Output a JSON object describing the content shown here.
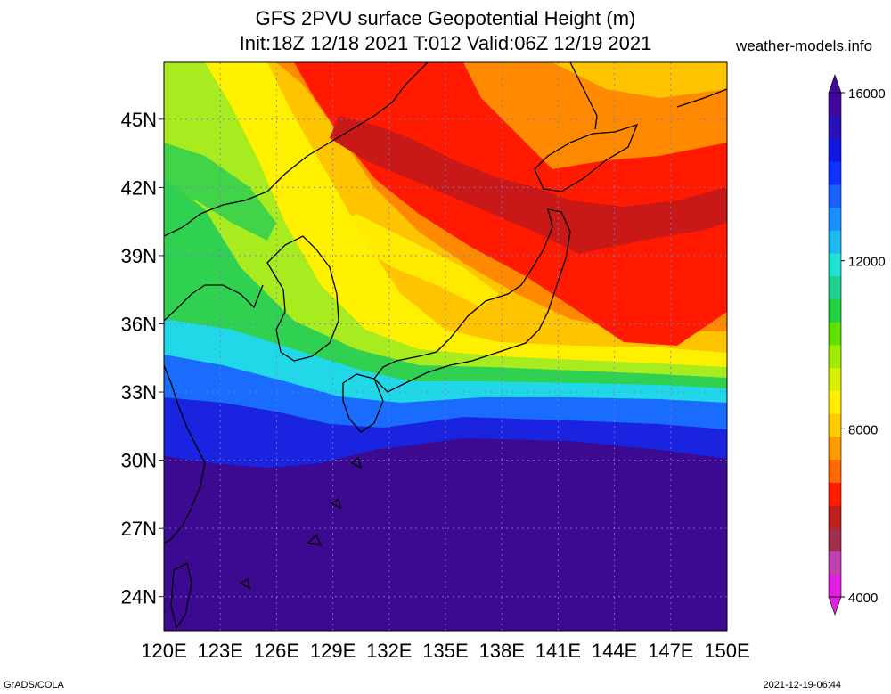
{
  "title_line1": "GFS 2PVU surface Geopotential Height (m)",
  "title_line2": "Init:18Z 12/18 2021 T:012 Valid:06Z 12/19 2021",
  "site": "weather-models.info",
  "footer_left": "GrADS/COLA",
  "footer_right": "2021-12-19-06:44",
  "map": {
    "lon_ticks": [
      "120E",
      "123E",
      "126E",
      "129E",
      "132E",
      "135E",
      "138E",
      "141E",
      "144E",
      "147E",
      "150E"
    ],
    "lat_ticks": [
      "45N",
      "42N",
      "39N",
      "36N",
      "33N",
      "30N",
      "27N",
      "24N"
    ],
    "lon_range": [
      120,
      150
    ],
    "lat_range": [
      22.5,
      47.5
    ]
  },
  "colorbar": {
    "labels": [
      "16000",
      "12000",
      "8000",
      "4000"
    ],
    "colors": [
      "#e020e0",
      "#c040b0",
      "#a03050",
      "#c02020",
      "#ff1e00",
      "#ff6a00",
      "#ff9a00",
      "#ffcc00",
      "#ffee00",
      "#d8f000",
      "#a0ec00",
      "#60e000",
      "#20d040",
      "#20d090",
      "#20e0d0",
      "#20b8f0",
      "#1a90ff",
      "#1a60ff",
      "#1030ff",
      "#1018e0",
      "#2a10b8",
      "#40089a"
    ]
  },
  "palette": {
    "purple": "#3c0a90",
    "deep_blue": "#1a24e0",
    "blue": "#1a6cff",
    "cyan": "#20d8e8",
    "green": "#30d050",
    "lime": "#a8ec20",
    "yellow": "#fff000",
    "gold": "#ffc400",
    "orange": "#ff8a00",
    "red": "#ff1a00",
    "dark_red": "#c81818"
  }
}
